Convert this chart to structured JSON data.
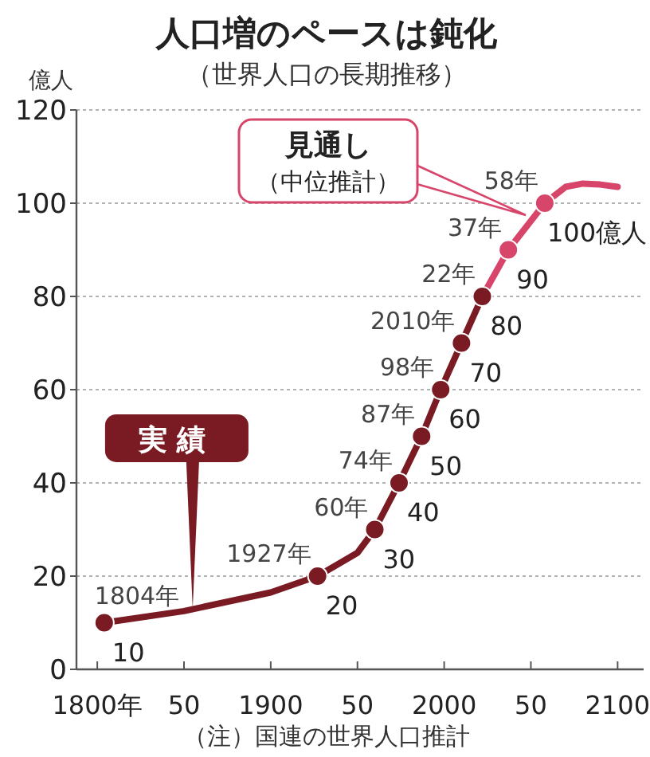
{
  "chart_data": {
    "type": "line",
    "title": "人口増のペースは鈍化",
    "subtitle": "（世界人口の長期推移）",
    "ylabel": "億人",
    "xlim": [
      1788,
      2115
    ],
    "ylim": [
      0,
      120
    ],
    "xticks": [
      {
        "value": 1800,
        "label": "1800年"
      },
      {
        "value": 1850,
        "label": "50"
      },
      1900,
      {
        "value": 1950,
        "label": "50"
      },
      2000,
      {
        "value": 2050,
        "label": "50"
      },
      2100
    ],
    "yticks": [
      0,
      20,
      40,
      60,
      80,
      100,
      120
    ],
    "grid": "y",
    "series": [
      {
        "color": "#7a1b24",
        "x": [
          1804,
          1850,
          1900,
          1927,
          1950,
          1960,
          1974,
          1987,
          1998,
          2010,
          2022
        ],
        "values": [
          10,
          12.5,
          16.5,
          20,
          25,
          30,
          40,
          50,
          60,
          70,
          80
        ]
      },
      {
        "color": "#d8456a",
        "x": [
          2022,
          2037,
          2058,
          2070,
          2080,
          2090,
          2100
        ],
        "values": [
          80,
          90,
          100,
          103.5,
          104.2,
          104,
          103.5
        ]
      },
      {
        "type": "scatter",
        "colors": [
          "#7a1b24",
          "#7a1b24",
          "#7a1b24",
          "#7a1b24",
          "#7a1b24",
          "#7a1b24",
          "#7a1b24",
          "#7a1b24",
          "#d8456a",
          "#d8456a"
        ],
        "x": [
          1804,
          1927,
          1960,
          1974,
          1987,
          1998,
          2010,
          2022,
          2037,
          2058
        ],
        "values": [
          10,
          20,
          30,
          40,
          50,
          60,
          70,
          80,
          90,
          100
        ],
        "value_labels": [
          "10",
          "20",
          "30",
          "40",
          "50",
          "60",
          "70",
          "80",
          "90",
          "100億人"
        ]
      }
    ],
    "annotations": [
      {
        "text": "1804年",
        "x": 1804,
        "y": 10
      },
      {
        "text": "1927年",
        "x": 1927,
        "y": 20
      },
      {
        "text": "60年",
        "x": 1960,
        "y": 30
      },
      {
        "text": "74年",
        "x": 1974,
        "y": 40
      },
      {
        "text": "87年",
        "x": 1987,
        "y": 50
      },
      {
        "text": "98年",
        "x": 1998,
        "y": 60
      },
      {
        "text": "2010年",
        "x": 2010,
        "y": 70
      },
      {
        "text": "22年",
        "x": 2022,
        "y": 80
      },
      {
        "text": "37年",
        "x": 2037,
        "y": 90
      },
      {
        "text": "58年",
        "x": 2058,
        "y": 100
      },
      {
        "text": "実績",
        "x": 1855,
        "y": 13
      },
      "見通し",
      "（中位推計）",
      "（注）国連の世界人口推計"
    ]
  }
}
